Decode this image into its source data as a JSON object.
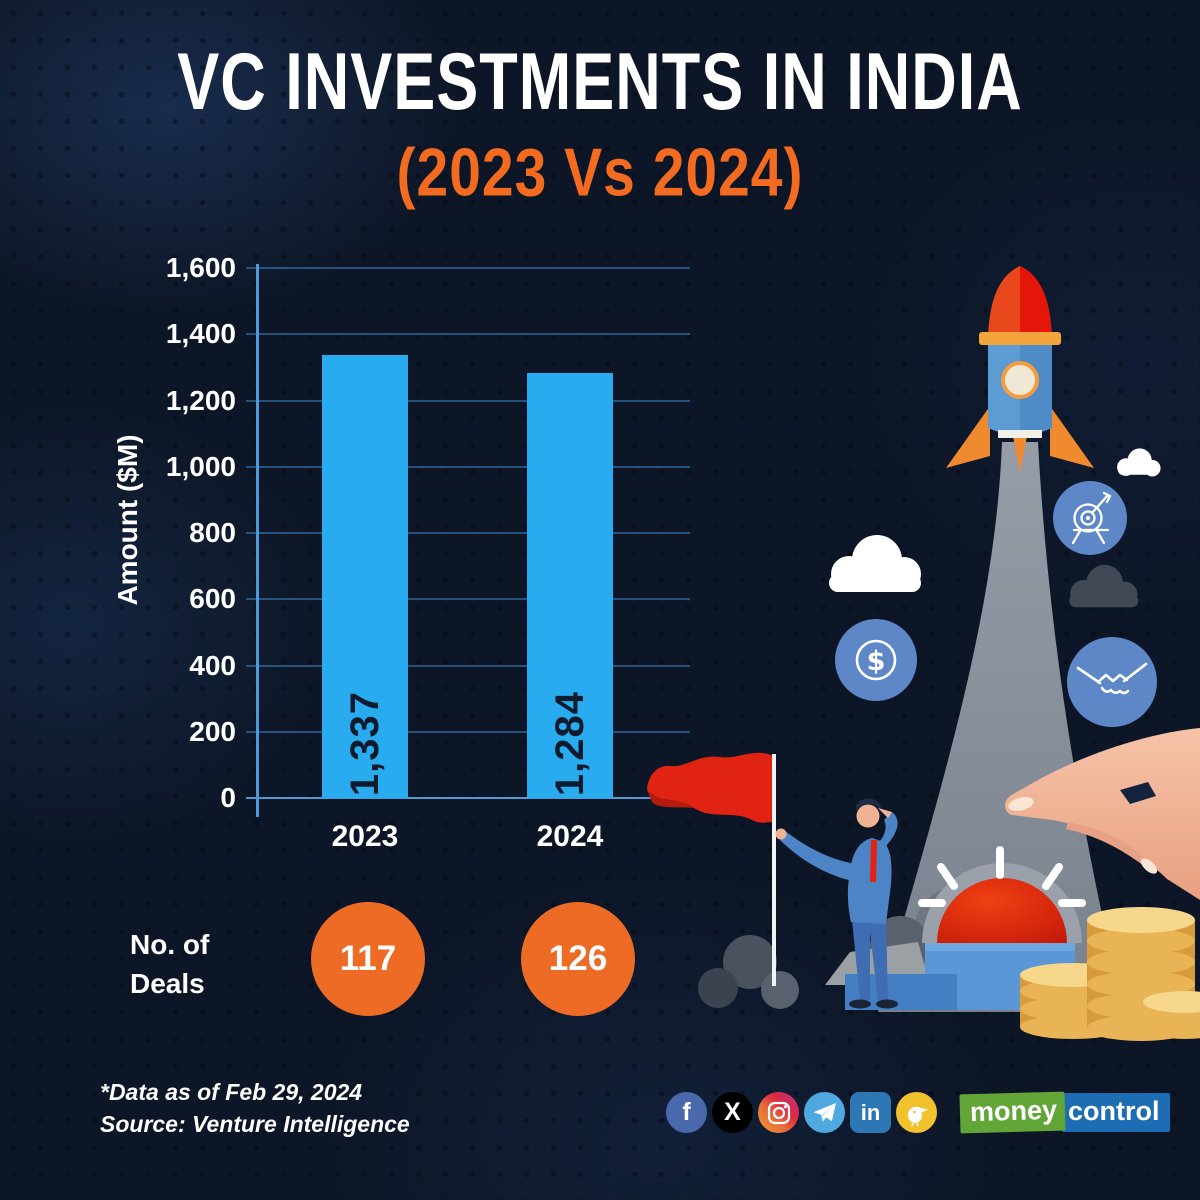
{
  "header": {
    "title": "VC INVESTMENTS IN INDIA",
    "subtitle": "(2023 Vs 2024)"
  },
  "chart_data": {
    "type": "bar",
    "title": "VC Investments in India (2023 Vs 2024)",
    "categories": [
      "2023",
      "2024"
    ],
    "series": [
      {
        "name": "Amount ($M)",
        "values": [
          1337,
          1284
        ]
      }
    ],
    "value_labels": [
      "1,337",
      "1,284"
    ],
    "xlabel": "",
    "ylabel": "Amount ($M)",
    "ylim": [
      0,
      1600
    ],
    "ytick_step": 200,
    "ytick_labels": [
      "0",
      "200",
      "400",
      "600",
      "800",
      "1,000",
      "1,200",
      "1,400",
      "1,600"
    ],
    "grid": true,
    "legend": false,
    "bar_color": "#29ABEF",
    "bar_label_color": "#0E1B2C"
  },
  "deals": {
    "label_line1": "No. of",
    "label_line2": "Deals",
    "values": [
      "117",
      "126"
    ],
    "circle_color": "#EE6B25"
  },
  "footer": {
    "note": "*Data as of Feb 29, 2024",
    "source": "Source: Venture Intelligence"
  },
  "social": {
    "items": [
      {
        "name": "facebook-icon",
        "glyph": "f",
        "bg": "#4A69AD"
      },
      {
        "name": "x-icon",
        "glyph": "X",
        "bg": "#000000"
      },
      {
        "name": "instagram-icon",
        "glyph": "",
        "bg": "gradient(#f09433→#c13584)"
      },
      {
        "name": "telegram-icon",
        "glyph": "",
        "bg": "#4FA8E0"
      },
      {
        "name": "linkedin-icon",
        "glyph": "in",
        "bg": "#2D77B5"
      },
      {
        "name": "koo-icon",
        "glyph": "",
        "bg": "#F2C12E"
      }
    ]
  },
  "logo": {
    "part1": "money",
    "part2": "control",
    "green": "#61A637",
    "blue": "#1E6CB4"
  },
  "illustration": {
    "elements": [
      "rocket",
      "exhaust-trail",
      "clouds",
      "target-badge",
      "dollar-badge",
      "handshake-badge",
      "red-flag",
      "businessman",
      "launch-button",
      "podium-steps",
      "coin-stacks",
      "pointing-hand"
    ]
  },
  "colors": {
    "background": "#0D1626",
    "accent_orange": "#F26B21",
    "bar_blue": "#29ABEF",
    "grid_blue": "#3E85C7",
    "badge_blue": "#5D87C7",
    "text_white": "#FFFFFF"
  }
}
